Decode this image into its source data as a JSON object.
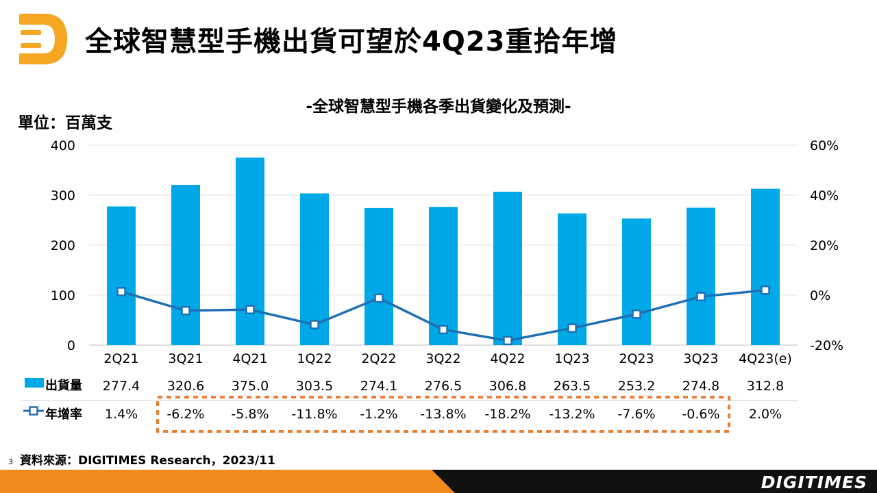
{
  "slide": {
    "title": "全球智慧型手機出貨可望於4Q23重拾年增",
    "unit_label": "單位：百萬支",
    "source": "資料來源：DIGITIMES Research，2023/11",
    "page_number": "3",
    "brand": "DIGITIMES"
  },
  "colors": {
    "bar": "#00A8E8",
    "line": "#1F6FB5",
    "accent": "#F08A1C",
    "highlight_box": "#EE7D31"
  },
  "chart_data": {
    "type": "bar",
    "title": "-全球智慧型手機各季出貨變化及預測-",
    "categories": [
      "2Q21",
      "3Q21",
      "4Q21",
      "1Q22",
      "2Q22",
      "3Q22",
      "4Q22",
      "1Q23",
      "2Q23",
      "3Q23",
      "4Q23(e)"
    ],
    "series": [
      {
        "name": "出貨量",
        "type": "bar",
        "axis": "left",
        "values": [
          277.4,
          320.6,
          375.0,
          303.5,
          274.1,
          276.5,
          306.8,
          263.5,
          253.2,
          274.8,
          312.8
        ],
        "labels": [
          "277.4",
          "320.6",
          "375.0",
          "303.5",
          "274.1",
          "276.5",
          "306.8",
          "263.5",
          "253.2",
          "274.8",
          "312.8"
        ]
      },
      {
        "name": "年增率",
        "type": "line",
        "axis": "right",
        "values": [
          1.4,
          -6.2,
          -5.8,
          -11.8,
          -1.2,
          -13.8,
          -18.2,
          -13.2,
          -7.6,
          -0.6,
          2.0
        ],
        "labels": [
          "1.4%",
          "-6.2%",
          "-5.8%",
          "-11.8%",
          "-1.2%",
          "-13.8%",
          "-18.2%",
          "-13.2%",
          "-7.6%",
          "-0.6%",
          "2.0%"
        ]
      }
    ],
    "y_left": {
      "min": 0,
      "max": 400,
      "ticks": [
        "0",
        "100",
        "200",
        "300",
        "400"
      ]
    },
    "y_right": {
      "min": -20,
      "max": 60,
      "ticks": [
        "-20%",
        "0%",
        "20%",
        "40%",
        "60%"
      ]
    },
    "grid": true,
    "legend": "data-table-below",
    "highlight": {
      "from_category": "3Q21",
      "to_category": "3Q23",
      "row": "年增率"
    }
  }
}
